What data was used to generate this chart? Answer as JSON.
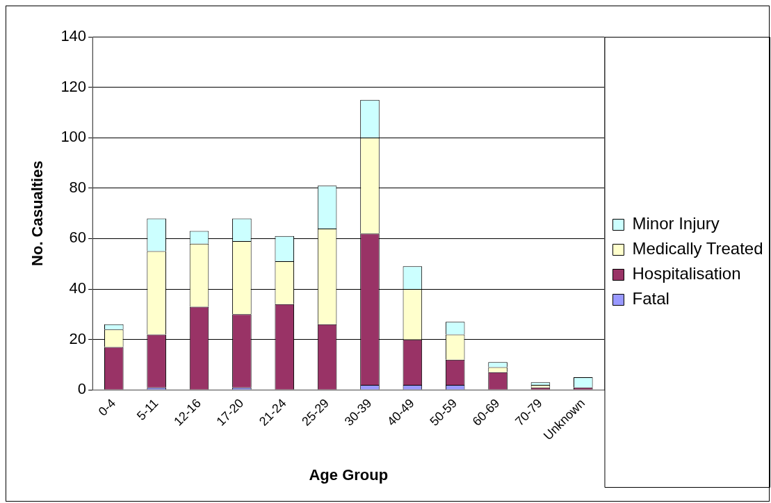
{
  "chart_data": {
    "type": "bar",
    "stacked": true,
    "xlabel": "Age Group",
    "ylabel": "No. Casualties",
    "categories": [
      "0-4",
      "5-11",
      "12-16",
      "17-20",
      "21-24",
      "25-29",
      "30-39",
      "40-49",
      "50-59",
      "60-69",
      "70-79",
      "Unknown"
    ],
    "series": [
      {
        "name": "Fatal",
        "color": "#9999ff",
        "values": [
          0,
          1,
          0,
          1,
          0,
          0,
          2,
          2,
          2,
          0,
          0,
          0
        ]
      },
      {
        "name": "Hospitalisation",
        "color": "#993366",
        "values": [
          17,
          21,
          33,
          29,
          34,
          26,
          60,
          18,
          10,
          7,
          1,
          1
        ]
      },
      {
        "name": "Medically Treated",
        "color": "#ffffcc",
        "values": [
          7,
          33,
          25,
          29,
          17,
          38,
          38,
          20,
          10,
          2,
          1,
          0
        ]
      },
      {
        "name": "Minor Injury",
        "color": "#ccffff",
        "values": [
          2,
          13,
          5,
          9,
          10,
          17,
          15,
          9,
          5,
          2,
          1,
          4
        ]
      }
    ],
    "ylim": [
      0,
      140
    ],
    "yticks": [
      0,
      20,
      40,
      60,
      80,
      100,
      120,
      140
    ],
    "grid": "y",
    "legend": "right"
  }
}
